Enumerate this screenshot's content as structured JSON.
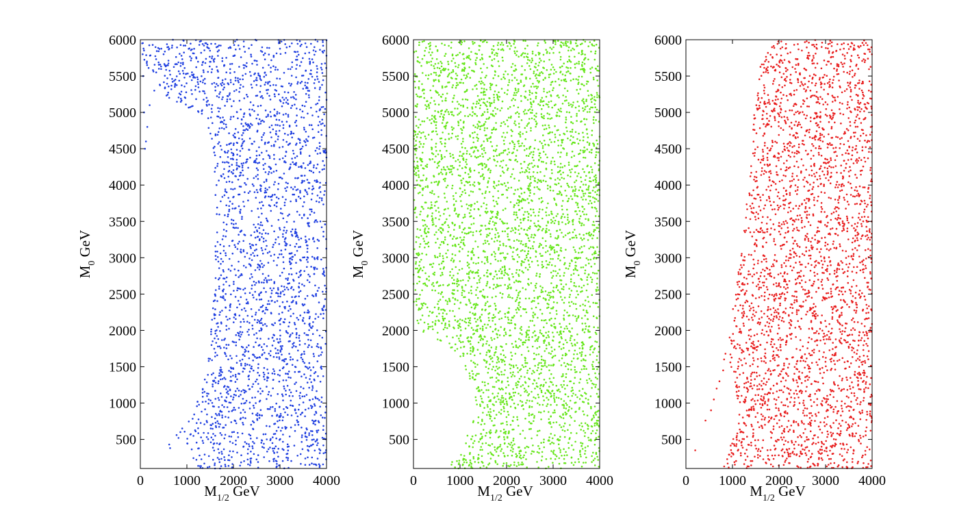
{
  "chart_data": [
    {
      "type": "scatter",
      "xlabel": "M",
      "xlabel_sub": "1/2",
      "xlabel_unit": "GeV",
      "ylabel": "M",
      "ylabel_sub": "0",
      "ylabel_unit": "GeV",
      "xlim": [
        0,
        4000
      ],
      "ylim": [
        100,
        6000
      ],
      "xticks": [
        "0",
        "1000",
        "2000",
        "3000",
        "4000"
      ],
      "yticks": [
        "500",
        "1000",
        "1500",
        "2000",
        "2500",
        "3000",
        "3500",
        "4000",
        "4500",
        "5000",
        "5500",
        "6000"
      ],
      "grid": false,
      "color": "#1f3fe0",
      "series": [
        {
          "points": [
            [
              620,
              430
            ],
            [
              640,
              380
            ],
            [
              780,
              560
            ],
            [
              820,
              520
            ],
            [
              860,
              600
            ],
            [
              900,
              650
            ],
            [
              700,
              6000
            ],
            [
              600,
              5900
            ],
            [
              500,
              5800
            ],
            [
              400,
              5600
            ],
            [
              300,
              5300
            ],
            [
              200,
              5100
            ],
            [
              150,
              4800
            ],
            [
              120,
              4600
            ],
            [
              100,
              4500
            ],
            [
              80,
              5000
            ],
            [
              60,
              5500
            ],
            [
              50,
              5800
            ],
            [
              40,
              5950
            ]
          ],
          "region": {
            "type": "boundary",
            "x_min_by_y": [
              [
                100,
                1150
              ],
              [
                200,
                1130
              ],
              [
                300,
                1080
              ],
              [
                400,
                1020
              ],
              [
                500,
                960
              ],
              [
                600,
                930
              ],
              [
                700,
                960
              ],
              [
                800,
                1050
              ],
              [
                900,
                1120
              ],
              [
                1000,
                1200
              ],
              [
                1200,
                1320
              ],
              [
                1500,
                1450
              ],
              [
                2000,
                1520
              ],
              [
                2500,
                1580
              ],
              [
                3000,
                1600
              ],
              [
                3500,
                1620
              ],
              [
                4000,
                1610
              ],
              [
                4500,
                1570
              ],
              [
                4800,
                1450
              ],
              [
                5000,
                1200
              ],
              [
                5100,
                950
              ],
              [
                5200,
                600
              ],
              [
                5400,
                300
              ],
              [
                5600,
                120
              ],
              [
                6000,
                0
              ]
            ],
            "density": 2600
          }
        }
      ]
    },
    {
      "type": "scatter",
      "xlabel": "M",
      "xlabel_sub": "1/2",
      "xlabel_unit": "GeV",
      "ylabel": "M",
      "ylabel_sub": "0",
      "ylabel_unit": "GeV",
      "xlim": [
        0,
        4000
      ],
      "ylim": [
        100,
        6000
      ],
      "xticks": [
        "0",
        "1000",
        "2000",
        "3000",
        "4000"
      ],
      "yticks": [
        "500",
        "1000",
        "1500",
        "2000",
        "2500",
        "3000",
        "3500",
        "4000",
        "4500",
        "5000",
        "5500",
        "6000"
      ],
      "grid": false,
      "color": "#66e61a",
      "series": [
        {
          "points": [],
          "region": {
            "type": "boundary",
            "x_min_by_y": [
              [
                100,
                680
              ],
              [
                200,
                820
              ],
              [
                400,
                1100
              ],
              [
                600,
                1180
              ],
              [
                800,
                1300
              ],
              [
                1000,
                1350
              ],
              [
                1200,
                1280
              ],
              [
                1400,
                1180
              ],
              [
                1600,
                1000
              ],
              [
                1800,
                750
              ],
              [
                1900,
                450
              ],
              [
                2000,
                150
              ],
              [
                2100,
                0
              ],
              [
                6000,
                0
              ]
            ],
            "density": 4200
          }
        }
      ]
    },
    {
      "type": "scatter",
      "xlabel": "M",
      "xlabel_sub": "1/2",
      "xlabel_unit": "GeV",
      "ylabel": "M",
      "ylabel_sub": "0",
      "ylabel_unit": "GeV",
      "xlim": [
        0,
        4000
      ],
      "ylim": [
        100,
        6000
      ],
      "xticks": [
        "0",
        "1000",
        "2000",
        "3000",
        "4000"
      ],
      "yticks": [
        "500",
        "1000",
        "1500",
        "2000",
        "2500",
        "3000",
        "3500",
        "4000",
        "4500",
        "5000",
        "5500",
        "6000"
      ],
      "grid": false,
      "color": "#e81e1e",
      "series": [
        {
          "points": [
            [
              200,
              350
            ],
            [
              420,
              760
            ],
            [
              540,
              900
            ],
            [
              600,
              1050
            ],
            [
              660,
              1200
            ],
            [
              720,
              1300
            ],
            [
              800,
              1450
            ],
            [
              820,
              1600
            ],
            [
              850,
              1680
            ]
          ],
          "region": {
            "type": "boundary",
            "x_min_by_y": [
              [
                100,
                800
              ],
              [
                300,
                900
              ],
              [
                500,
                1000
              ],
              [
                700,
                1080
              ],
              [
                900,
                1150
              ],
              [
                1100,
                1100
              ],
              [
                1300,
                1000
              ],
              [
                1500,
                950
              ],
              [
                1700,
                900
              ],
              [
                2000,
                920
              ],
              [
                2500,
                1050
              ],
              [
                3000,
                1150
              ],
              [
                3500,
                1250
              ],
              [
                4000,
                1330
              ],
              [
                4500,
                1400
              ],
              [
                5000,
                1470
              ],
              [
                5500,
                1560
              ],
              [
                6000,
                1620
              ]
            ],
            "density": 3000
          }
        }
      ]
    }
  ]
}
